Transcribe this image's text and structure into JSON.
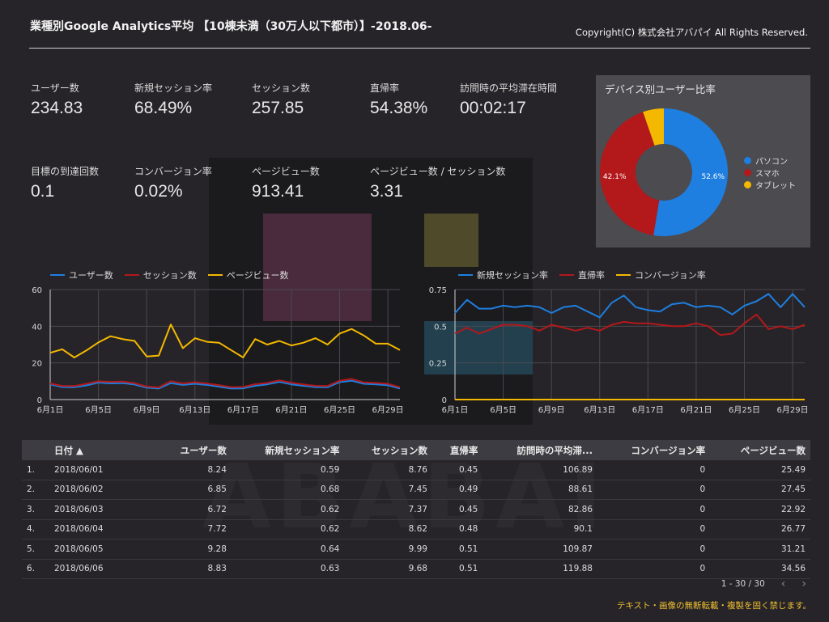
{
  "header": {
    "title": "業種別Google Analytics平均 【10棟未満（30万人以下都市）】-2018.06-",
    "copyright": "Copyright(C) 株式会社アバパイ All Rights Reserved."
  },
  "kpis": [
    {
      "label": "ユーザー数",
      "value": "234.83"
    },
    {
      "label": "新規セッション率",
      "value": "68.49%"
    },
    {
      "label": "セッション数",
      "value": "257.85"
    },
    {
      "label": "直帰率",
      "value": "54.38%"
    },
    {
      "label": "訪問時の平均滞在時間",
      "value": "00:02:17"
    },
    {
      "label": "目標の到達回数",
      "value": "0.1"
    },
    {
      "label": "コンバージョン率",
      "value": "0.02%"
    },
    {
      "label": "ページビュー数",
      "value": "913.41"
    },
    {
      "label": "ページビュー数 / セッション数",
      "value": "3.31"
    }
  ],
  "device_chart": {
    "title": "デバイス別ユーザー比率",
    "slices": [
      {
        "name": "パソコン",
        "value": 52.6,
        "label": "52.6%",
        "color": "#1e7fe0"
      },
      {
        "name": "スマホ",
        "value": 42.1,
        "label": "42.1%",
        "color": "#b3181b"
      },
      {
        "name": "タブレット",
        "value": 5.3,
        "label": "",
        "color": "#f4b800"
      }
    ]
  },
  "chart_data": [
    {
      "type": "line",
      "x": [
        "6月1日",
        "6月2日",
        "6月3日",
        "6月4日",
        "6月5日",
        "6月6日",
        "6月7日",
        "6月8日",
        "6月9日",
        "6月10日",
        "6月11日",
        "6月12日",
        "6月13日",
        "6月14日",
        "6月15日",
        "6月16日",
        "6月17日",
        "6月18日",
        "6月19日",
        "6月20日",
        "6月21日",
        "6月22日",
        "6月23日",
        "6月24日",
        "6月25日",
        "6月26日",
        "6月27日",
        "6月28日",
        "6月29日",
        "6月30日"
      ],
      "xticks": [
        "6月1日",
        "6月5日",
        "6月9日",
        "6月13日",
        "6月17日",
        "6月21日",
        "6月25日",
        "6月29日"
      ],
      "ylim": [
        0,
        60
      ],
      "yticks": [
        0,
        20,
        40,
        60
      ],
      "grid": true,
      "legend": "top-left",
      "series": [
        {
          "name": "ユーザー数",
          "color": "#1e7fe0",
          "values": [
            8.24,
            6.85,
            6.72,
            7.72,
            9.28,
            8.83,
            9,
            8.2,
            6.5,
            6,
            9,
            8,
            8.6,
            8,
            7,
            6,
            6.1,
            7.5,
            8.3,
            9.6,
            8.3,
            7.5,
            6.8,
            6.7,
            9.5,
            10.3,
            8.6,
            8.3,
            7.8,
            6
          ]
        },
        {
          "name": "セッション数",
          "color": "#b3181b",
          "values": [
            8.76,
            7.45,
            7.37,
            8.62,
            9.99,
            9.68,
            9.8,
            8.9,
            7.1,
            6.6,
            10,
            8.8,
            9.5,
            8.8,
            7.8,
            6.8,
            6.9,
            8.4,
            9.1,
            10.5,
            9.2,
            8.3,
            7.5,
            7.4,
            10.3,
            11.3,
            9.4,
            9.1,
            8.6,
            6.7
          ]
        },
        {
          "name": "ページビュー数",
          "color": "#f4b800",
          "values": [
            25.49,
            27.45,
            22.92,
            26.77,
            31.21,
            34.56,
            33,
            32,
            23.5,
            24,
            41,
            28,
            33.5,
            31.5,
            31,
            27,
            23,
            33,
            30,
            32,
            29.5,
            31,
            33.5,
            30,
            36,
            38.5,
            35,
            30.5,
            30.5,
            27
          ]
        }
      ]
    },
    {
      "type": "line",
      "x": [
        "6月1日",
        "6月2日",
        "6月3日",
        "6月4日",
        "6月5日",
        "6月6日",
        "6月7日",
        "6月8日",
        "6月9日",
        "6月10日",
        "6月11日",
        "6月12日",
        "6月13日",
        "6月14日",
        "6月15日",
        "6月16日",
        "6月17日",
        "6月18日",
        "6月19日",
        "6月20日",
        "6月21日",
        "6月22日",
        "6月23日",
        "6月24日",
        "6月25日",
        "6月26日",
        "6月27日",
        "6月28日",
        "6月29日",
        "6月30日"
      ],
      "xticks": [
        "6月1日",
        "6月5日",
        "6月9日",
        "6月13日",
        "6月17日",
        "6月21日",
        "6月25日",
        "6月29日"
      ],
      "ylim": [
        0,
        0.75
      ],
      "yticks": [
        0,
        0.25,
        0.5,
        0.75
      ],
      "grid": true,
      "legend": "top-left",
      "series": [
        {
          "name": "新規セッション率",
          "color": "#1e7fe0",
          "values": [
            0.59,
            0.68,
            0.62,
            0.62,
            0.64,
            0.63,
            0.64,
            0.63,
            0.59,
            0.63,
            0.64,
            0.6,
            0.56,
            0.66,
            0.71,
            0.63,
            0.61,
            0.6,
            0.65,
            0.66,
            0.63,
            0.64,
            0.63,
            0.58,
            0.64,
            0.67,
            0.72,
            0.63,
            0.72,
            0.63
          ]
        },
        {
          "name": "直帰率",
          "color": "#b3181b",
          "values": [
            0.45,
            0.49,
            0.45,
            0.48,
            0.51,
            0.51,
            0.5,
            0.47,
            0.51,
            0.49,
            0.47,
            0.49,
            0.47,
            0.51,
            0.53,
            0.52,
            0.52,
            0.51,
            0.5,
            0.5,
            0.52,
            0.5,
            0.44,
            0.45,
            0.52,
            0.58,
            0.48,
            0.5,
            0.48,
            0.51
          ]
        },
        {
          "name": "コンバージョン率",
          "color": "#f4b800",
          "values": [
            0,
            0,
            0,
            0,
            0,
            0,
            0,
            0,
            0,
            0,
            0,
            0,
            0,
            0,
            0,
            0,
            0,
            0,
            0,
            0,
            0,
            0,
            0,
            0,
            0,
            0,
            0,
            0,
            0,
            0
          ]
        }
      ]
    }
  ],
  "table": {
    "columns": [
      "日付 ▲",
      "ユーザー数",
      "新規セッション率",
      "セッション数",
      "直帰率",
      "訪問時の平均滞...",
      "コンバージョン率",
      "ページビュー数"
    ],
    "rows": [
      {
        "idx": "1.",
        "date": "2018/06/01",
        "users": "8.24",
        "newrate": "0.59",
        "sessions": "8.76",
        "bounce": "0.45",
        "duration": "106.89",
        "conv": "0",
        "pv": "25.49"
      },
      {
        "idx": "2.",
        "date": "2018/06/02",
        "users": "6.85",
        "newrate": "0.68",
        "sessions": "7.45",
        "bounce": "0.49",
        "duration": "88.61",
        "conv": "0",
        "pv": "27.45"
      },
      {
        "idx": "3.",
        "date": "2018/06/03",
        "users": "6.72",
        "newrate": "0.62",
        "sessions": "7.37",
        "bounce": "0.45",
        "duration": "82.86",
        "conv": "0",
        "pv": "22.92"
      },
      {
        "idx": "4.",
        "date": "2018/06/04",
        "users": "7.72",
        "newrate": "0.62",
        "sessions": "8.62",
        "bounce": "0.48",
        "duration": "90.1",
        "conv": "0",
        "pv": "26.77"
      },
      {
        "idx": "5.",
        "date": "2018/06/05",
        "users": "9.28",
        "newrate": "0.64",
        "sessions": "9.99",
        "bounce": "0.51",
        "duration": "109.87",
        "conv": "0",
        "pv": "31.21"
      },
      {
        "idx": "6.",
        "date": "2018/06/06",
        "users": "8.83",
        "newrate": "0.63",
        "sessions": "9.68",
        "bounce": "0.51",
        "duration": "119.88",
        "conv": "0",
        "pv": "34.56"
      }
    ],
    "pager": "1 - 30 / 30",
    "prev_icon": "‹",
    "next_icon": "›"
  },
  "footer": "テキスト・画像の無断転載・複製を固く禁じます。",
  "watermark_text": "ABABAI"
}
